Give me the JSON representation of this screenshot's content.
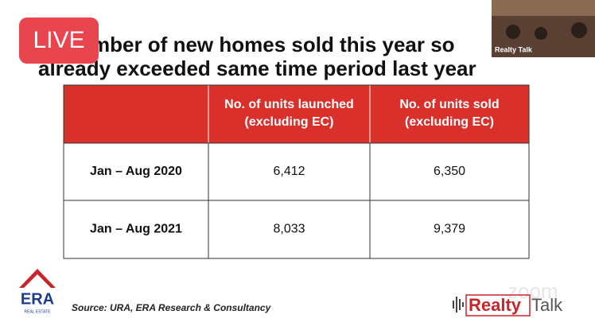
{
  "slide": {
    "title_lines": [
      "mber of new homes sold this year so",
      "already exceeded same time period last year"
    ],
    "live_badge": "LIVE",
    "video_label": "Realty Talk",
    "table": {
      "header": [
        "",
        "No. of units launched\n(excluding EC)",
        "No. of units sold\n(excluding EC)"
      ],
      "rows": [
        [
          "Jan – Aug 2020",
          "6,412",
          "6,350"
        ],
        [
          "Jan – Aug 2021",
          "8,033",
          "9,379"
        ]
      ]
    },
    "logo": {
      "name": "ERA",
      "tagline": "REAL ESTATE"
    },
    "source": "Source: URA, ERA Research & Consultancy",
    "watermark": "zoom",
    "brand": {
      "first": "Realty",
      "second": "Talk"
    }
  }
}
